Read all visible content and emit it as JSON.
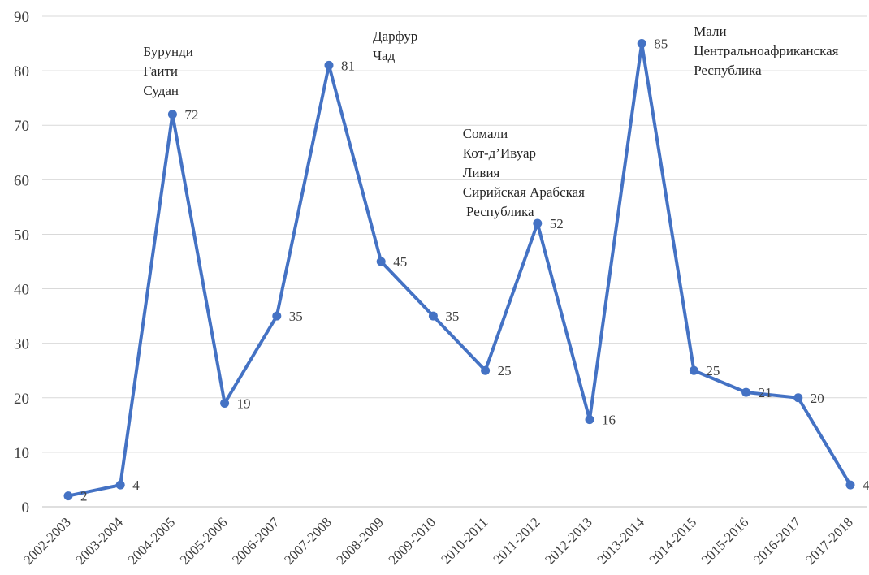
{
  "chart_data": {
    "type": "line",
    "categories": [
      "2002-2003",
      "2003-2004",
      "2004-2005",
      "2005-2006",
      "2006-2007",
      "2007-2008",
      "2008-2009",
      "2009-2010",
      "2010-2011",
      "2011-2012",
      "2012-2013",
      "2013-2014",
      "2014-2015",
      "2015-2016",
      "2016-2017",
      "2017-2018"
    ],
    "series": [
      {
        "values": [
          2,
          4,
          72,
          19,
          35,
          81,
          45,
          35,
          25,
          52,
          16,
          85,
          25,
          21,
          20,
          4
        ],
        "labels": [
          "2",
          "4",
          "72",
          "19",
          "35",
          "81",
          "45",
          "35",
          "25",
          "52",
          "16",
          "85",
          "25",
          "21",
          "20",
          "4"
        ],
        "color": "#4472C4"
      }
    ],
    "title": "",
    "xlabel": "",
    "ylabel": "",
    "ylim": [
      0,
      90
    ],
    "yticks": [
      "0",
      "10",
      "20",
      "30",
      "40",
      "50",
      "60",
      "70",
      "80",
      "90"
    ],
    "grid": true,
    "gridline_color": "#d9d9d9",
    "annotations": [
      {
        "category": "2004-2005",
        "lines": [
          "Бурунди",
          "Гаити",
          "Судан"
        ]
      },
      {
        "category": "2007-2008",
        "lines": [
          "Дарфур",
          "Чад"
        ]
      },
      {
        "category": "2011-2012",
        "lines": [
          "Сомали",
          "Кот-д’Ивуар",
          "Ливия",
          "Сирийская Арабская",
          " Республика"
        ]
      },
      {
        "category": "2013-2014",
        "lines": [
          "Мали",
          "Центральноафриканская",
          "Республика"
        ]
      }
    ]
  }
}
